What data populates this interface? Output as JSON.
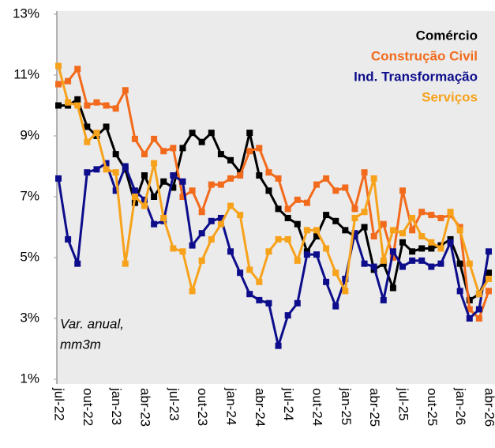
{
  "chart_data": {
    "type": "line",
    "annotation": [
      "Var. anual,",
      "mm3m"
    ],
    "categories": [
      "jul-22",
      null,
      null,
      "out-22",
      null,
      null,
      "jan-23",
      null,
      null,
      "abr-23",
      null,
      null,
      "jul-23",
      null,
      null,
      "out-23",
      null,
      null,
      "jan-24",
      null,
      null,
      "abr-24",
      null,
      null,
      "jul-24",
      null,
      null,
      "out-24",
      null,
      null,
      "jan-25",
      null,
      null,
      "abr-25",
      null,
      null,
      "jul-25",
      null,
      null,
      "out-25",
      null,
      null,
      "jan-26",
      null,
      null,
      "abr-26"
    ],
    "series": [
      {
        "name": "Comércio",
        "color": "#000000",
        "values": [
          10.0,
          10.0,
          10.2,
          9.3,
          9.0,
          9.3,
          8.4,
          7.9,
          6.8,
          7.7,
          7.0,
          7.5,
          7.3,
          8.6,
          9.1,
          8.8,
          9.1,
          8.4,
          8.2,
          7.8,
          9.1,
          7.7,
          7.2,
          6.6,
          6.3,
          6.1,
          5.2,
          5.7,
          6.4,
          6.2,
          5.9,
          5.7,
          6.0,
          4.6,
          4.8,
          4.0,
          5.5,
          5.2,
          5.3,
          5.3,
          5.4,
          5.6,
          4.8,
          3.6,
          3.8,
          4.5
        ]
      },
      {
        "name": "Construção Civil",
        "color": "#f26b1d",
        "values": [
          10.7,
          10.8,
          11.2,
          10.0,
          10.1,
          10.0,
          9.9,
          10.5,
          8.9,
          8.4,
          8.9,
          8.5,
          8.6,
          7.0,
          7.2,
          6.5,
          7.4,
          7.4,
          7.6,
          7.7,
          8.5,
          8.6,
          7.8,
          7.6,
          6.6,
          6.9,
          6.8,
          7.4,
          7.6,
          7.2,
          7.3,
          6.6,
          7.8,
          5.7,
          6.1,
          5.0,
          7.2,
          5.9,
          6.5,
          6.4,
          6.3,
          6.4,
          6.0,
          3.3,
          3.0,
          3.9
        ]
      },
      {
        "name": "Ind. Transformação",
        "color": "#0d0d8c",
        "values": [
          7.6,
          5.6,
          4.8,
          7.8,
          7.9,
          8.1,
          7.2,
          8.0,
          7.2,
          6.9,
          6.1,
          6.2,
          7.7,
          7.5,
          5.4,
          5.8,
          6.2,
          6.3,
          5.2,
          4.5,
          3.8,
          3.6,
          3.5,
          2.1,
          3.1,
          3.5,
          5.1,
          5.1,
          4.2,
          3.4,
          4.3,
          5.8,
          4.8,
          4.7,
          3.6,
          5.2,
          4.7,
          4.9,
          4.9,
          4.7,
          4.8,
          5.5,
          3.9,
          3.0,
          3.3,
          5.2
        ]
      },
      {
        "name": "Serviços",
        "color": "#f7a21b",
        "values": [
          11.3,
          10.1,
          10.0,
          8.8,
          9.1,
          7.9,
          7.8,
          4.8,
          7.0,
          6.7,
          8.1,
          6.3,
          5.3,
          5.2,
          3.9,
          4.9,
          5.6,
          6.1,
          6.7,
          6.4,
          4.6,
          4.2,
          5.2,
          5.6,
          5.6,
          4.9,
          5.9,
          5.9,
          5.3,
          4.5,
          3.9,
          6.3,
          6.5,
          7.6,
          4.9,
          5.9,
          5.8,
          6.3,
          5.7,
          5.5,
          5.3,
          6.5,
          5.9,
          4.8,
          3.8,
          4.3
        ]
      }
    ],
    "ylim": [
      1,
      13
    ],
    "yticks": [
      {
        "value": 1,
        "label": "1%"
      },
      {
        "value": 3,
        "label": "3%"
      },
      {
        "value": 5,
        "label": "5%"
      },
      {
        "value": 7,
        "label": "7%"
      },
      {
        "value": 9,
        "label": "9%"
      },
      {
        "value": 11,
        "label": "11%"
      },
      {
        "value": 13,
        "label": "13%"
      }
    ],
    "legend": "upper right"
  }
}
